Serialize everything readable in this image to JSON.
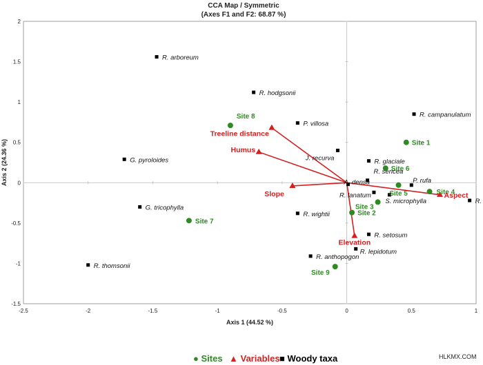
{
  "chart_data": {
    "type": "scatter",
    "title": "CCA Map / Symmetric",
    "subtitle": "(Axes F1 and F2: 68.87 %)",
    "xlabel": "Axis 1 (44.52 %)",
    "ylabel": "Axis 2 (24.36 %)",
    "xlim": [
      -2.5,
      1.0
    ],
    "ylim": [
      -1.5,
      2.0
    ],
    "xticks": [
      "-2.5",
      "-2",
      "-1.5",
      "-1",
      "-0.5",
      "0",
      "0.5",
      "1"
    ],
    "yticks": [
      "-1.5",
      "-1",
      "-0.5",
      "0",
      "0.5",
      "1",
      "1.5",
      "2"
    ],
    "grid": false,
    "legend_position": "bottom",
    "colors": {
      "sites": "#2e8b22",
      "variables": "#d42020",
      "taxa": "#000000",
      "axes": "#b8b8b8",
      "frame": "#888888"
    },
    "series": [
      {
        "name": "Sites",
        "marker": "circle",
        "points": [
          {
            "label": "Site 1",
            "x": 0.46,
            "y": 0.5
          },
          {
            "label": "Site 2",
            "x": 0.04,
            "y": -0.37
          },
          {
            "label": "Site 3",
            "x": 0.24,
            "y": -0.24
          },
          {
            "label": "Site 4",
            "x": 0.64,
            "y": -0.11
          },
          {
            "label": "Site 5",
            "x": 0.4,
            "y": -0.03
          },
          {
            "label": "Site 6",
            "x": 0.3,
            "y": 0.18
          },
          {
            "label": "Site 7",
            "x": -1.22,
            "y": -0.47
          },
          {
            "label": "Site 8",
            "x": -0.9,
            "y": 0.71
          },
          {
            "label": "Site 9",
            "x": -0.09,
            "y": -1.04
          }
        ]
      },
      {
        "name": "Variables",
        "marker": "triangle",
        "points": [
          {
            "label": "Treeline distance",
            "x": -0.58,
            "y": 0.68
          },
          {
            "label": "Humus",
            "x": -0.68,
            "y": 0.38
          },
          {
            "label": "Slope",
            "x": -0.42,
            "y": -0.04
          },
          {
            "label": "Elevation",
            "x": 0.06,
            "y": -0.66
          },
          {
            "label": "Aspect",
            "x": 0.72,
            "y": -0.15
          }
        ]
      },
      {
        "name": "Woody taxa",
        "marker": "square",
        "points": [
          {
            "label": "R. arboreum",
            "x": -1.47,
            "y": 1.56
          },
          {
            "label": "R. hodgsonii",
            "x": -0.72,
            "y": 1.12
          },
          {
            "label": "P. villosa",
            "x": -0.38,
            "y": 0.74
          },
          {
            "label": "R. campanulatum",
            "x": 0.52,
            "y": 0.85
          },
          {
            "label": "G. pyroloides",
            "x": -1.72,
            "y": 0.29
          },
          {
            "label": "J. recurva",
            "x": -0.07,
            "y": 0.4
          },
          {
            "label": "R. glaciale",
            "x": 0.17,
            "y": 0.27
          },
          {
            "label": "R. sericea",
            "x": 0.16,
            "y": 0.03
          },
          {
            "label": "A. densa",
            "x": 0.01,
            "y": -0.02
          },
          {
            "label": "P. rufa",
            "x": 0.5,
            "y": -0.03
          },
          {
            "label": "R. lanatum",
            "x": 0.21,
            "y": -0.12
          },
          {
            "label": "S. microphylla",
            "x": 0.33,
            "y": -0.15
          },
          {
            "label": "R. fulgens",
            "x": 0.95,
            "y": -0.22
          },
          {
            "label": "G. tricophylla",
            "x": -1.6,
            "y": -0.3
          },
          {
            "label": "R. wightii",
            "x": -0.38,
            "y": -0.38
          },
          {
            "label": "R. setosum",
            "x": 0.17,
            "y": -0.64
          },
          {
            "label": "R. lepidotum",
            "x": 0.07,
            "y": -0.82
          },
          {
            "label": "R. anthopogon",
            "x": -0.28,
            "y": -0.91
          },
          {
            "label": "R. thomsonii",
            "x": -2.0,
            "y": -1.02
          }
        ]
      }
    ]
  },
  "legend": {
    "sites": "Sites",
    "variables": "Variables",
    "taxa": "Woody taxa"
  },
  "watermark": "HLKMX.COM"
}
